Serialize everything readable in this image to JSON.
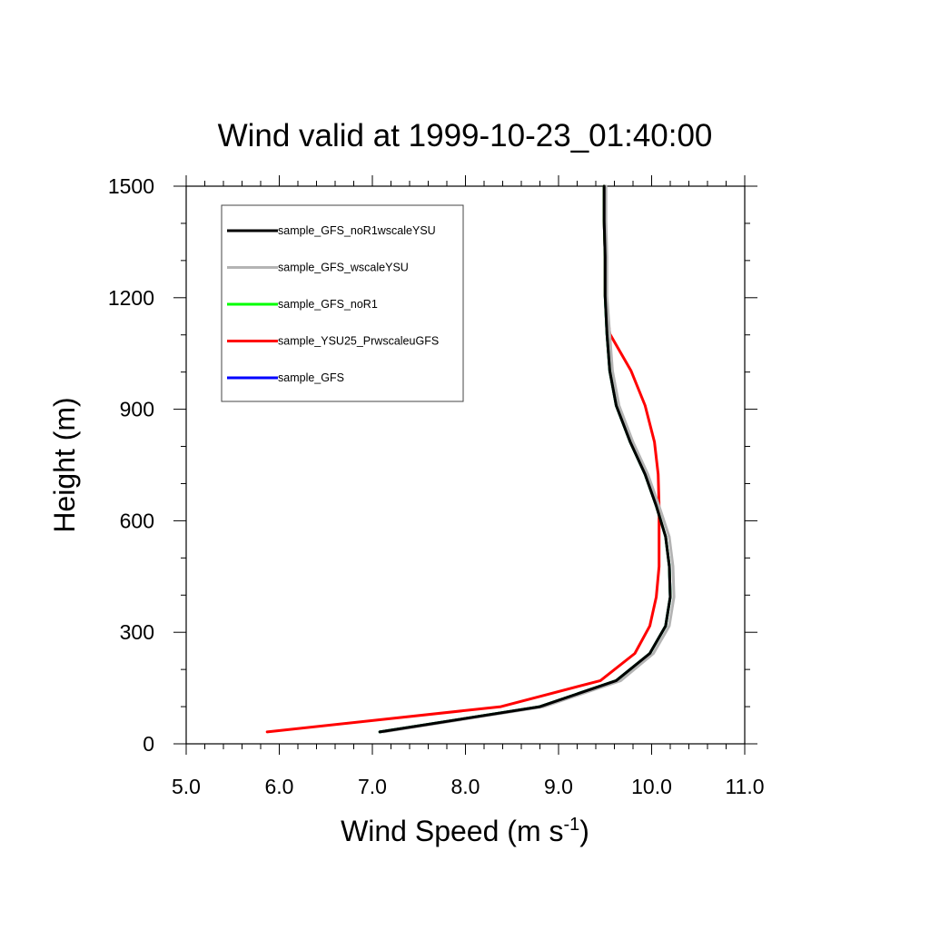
{
  "chart_data": {
    "type": "line",
    "title": "Wind valid at 1999-10-23_01:40:00",
    "xlabel": "Wind Speed (m s",
    "xlabel_superscript": "-1",
    "xlabel_suffix": ")",
    "ylabel": "Height (m)",
    "xlim": [
      5.0,
      11.0
    ],
    "ylim": [
      0,
      1500
    ],
    "x_ticks": [
      "5.0",
      "6.0",
      "7.0",
      "8.0",
      "9.0",
      "10.0",
      "11.0"
    ],
    "y_ticks": [
      "0",
      "300",
      "600",
      "900",
      "1200",
      "1500"
    ],
    "grid": false,
    "legend_position": "top-left",
    "series": [
      {
        "name": "sample_GFS",
        "color": "#0000ff",
        "points": [
          [
            7.08,
            32
          ],
          [
            8.8,
            100
          ],
          [
            9.62,
            170
          ],
          [
            9.98,
            243
          ],
          [
            10.15,
            317
          ],
          [
            10.2,
            395
          ],
          [
            10.19,
            477
          ],
          [
            10.15,
            557
          ],
          [
            10.05,
            640
          ],
          [
            9.93,
            725
          ],
          [
            9.77,
            812
          ],
          [
            9.62,
            910
          ],
          [
            9.55,
            1003
          ],
          [
            9.52,
            1103
          ],
          [
            9.5,
            1205
          ],
          [
            9.5,
            1310
          ],
          [
            9.49,
            1407
          ],
          [
            9.49,
            1500
          ]
        ]
      },
      {
        "name": "sample_YSU25_PrwscaleuGFS",
        "color": "#ff0000",
        "points": [
          [
            5.87,
            32
          ],
          [
            8.38,
            100
          ],
          [
            9.45,
            170
          ],
          [
            9.82,
            243
          ],
          [
            9.98,
            317
          ],
          [
            10.05,
            395
          ],
          [
            10.08,
            477
          ],
          [
            10.08,
            557
          ],
          [
            10.08,
            640
          ],
          [
            10.07,
            725
          ],
          [
            10.03,
            812
          ],
          [
            9.93,
            910
          ],
          [
            9.78,
            1003
          ],
          [
            9.55,
            1103
          ],
          [
            9.5,
            1205
          ],
          [
            9.5,
            1310
          ],
          [
            9.49,
            1407
          ],
          [
            9.49,
            1500
          ]
        ]
      },
      {
        "name": "sample_GFS_noR1",
        "color": "#00ff00",
        "points": [
          [
            7.08,
            32
          ],
          [
            8.8,
            100
          ],
          [
            9.62,
            170
          ],
          [
            9.98,
            243
          ],
          [
            10.15,
            317
          ],
          [
            10.2,
            395
          ],
          [
            10.19,
            477
          ],
          [
            10.15,
            557
          ],
          [
            10.05,
            640
          ],
          [
            9.93,
            725
          ],
          [
            9.77,
            812
          ],
          [
            9.62,
            910
          ],
          [
            9.55,
            1003
          ],
          [
            9.52,
            1103
          ],
          [
            9.5,
            1205
          ],
          [
            9.5,
            1310
          ],
          [
            9.49,
            1407
          ],
          [
            9.49,
            1500
          ]
        ]
      },
      {
        "name": "sample_GFS_wscaleYSU",
        "color": "#b4b4b4",
        "points": [
          [
            7.1,
            32
          ],
          [
            8.82,
            100
          ],
          [
            9.65,
            170
          ],
          [
            10.0,
            243
          ],
          [
            10.17,
            317
          ],
          [
            10.22,
            395
          ],
          [
            10.21,
            477
          ],
          [
            10.17,
            557
          ],
          [
            10.06,
            640
          ],
          [
            9.94,
            725
          ],
          [
            9.78,
            812
          ],
          [
            9.63,
            910
          ],
          [
            9.56,
            1003
          ],
          [
            9.53,
            1103
          ],
          [
            9.5,
            1205
          ],
          [
            9.5,
            1310
          ],
          [
            9.49,
            1407
          ],
          [
            9.49,
            1500
          ]
        ]
      },
      {
        "name": "sample_GFS_noR1wscaleYSU",
        "color": "#000000",
        "points": [
          [
            7.08,
            32
          ],
          [
            8.8,
            100
          ],
          [
            9.62,
            170
          ],
          [
            9.98,
            243
          ],
          [
            10.15,
            317
          ],
          [
            10.2,
            395
          ],
          [
            10.19,
            477
          ],
          [
            10.15,
            557
          ],
          [
            10.05,
            640
          ],
          [
            9.93,
            725
          ],
          [
            9.77,
            812
          ],
          [
            9.62,
            910
          ],
          [
            9.55,
            1003
          ],
          [
            9.52,
            1103
          ],
          [
            9.5,
            1205
          ],
          [
            9.5,
            1310
          ],
          [
            9.49,
            1407
          ],
          [
            9.49,
            1500
          ]
        ]
      }
    ],
    "legend_order": [
      "sample_GFS_noR1wscaleYSU",
      "sample_GFS_wscaleYSU",
      "sample_GFS_noR1",
      "sample_YSU25_PrwscaleuGFS",
      "sample_GFS"
    ]
  }
}
